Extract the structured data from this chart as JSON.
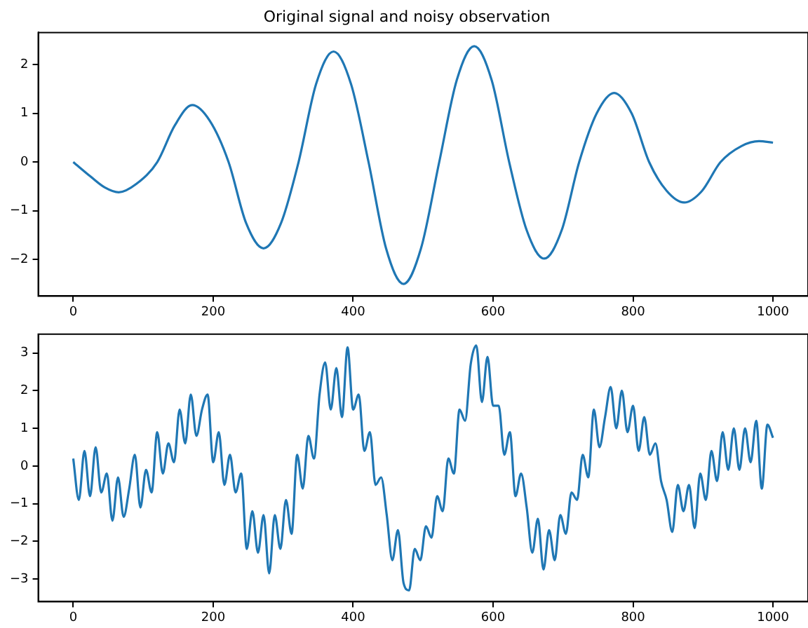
{
  "chart_data": [
    {
      "type": "line",
      "title": "Original signal and noisy observation",
      "xlim": [
        -50,
        1050
      ],
      "xticks": [
        0,
        200,
        400,
        600,
        800,
        1000
      ],
      "ylim": [
        -2.75,
        2.66
      ],
      "yticks": [
        -2,
        -1,
        0,
        1,
        2
      ],
      "grid": false,
      "legend": false,
      "marker": "none",
      "line_style": "solid",
      "series": [
        {
          "color": "#1f77b4",
          "x": [
            0,
            25,
            45,
            65,
            90,
            120,
            145,
            170,
            195,
            222,
            247,
            272,
            297,
            322,
            347,
            372,
            397,
            422,
            447,
            472,
            497,
            523,
            548,
            573,
            598,
            623,
            648,
            673,
            698,
            723,
            748,
            773,
            798,
            823,
            848,
            873,
            898,
            925,
            955,
            980,
            1000
          ],
          "values": [
            0,
            -0.3,
            -0.52,
            -0.62,
            -0.45,
            0,
            0.75,
            1.17,
            0.85,
            0,
            -1.25,
            -1.77,
            -1.25,
            0,
            1.6,
            2.27,
            1.6,
            0,
            -1.77,
            -2.5,
            -1.77,
            0,
            1.68,
            2.38,
            1.68,
            0,
            -1.4,
            -1.98,
            -1.4,
            0,
            1.0,
            1.42,
            1.0,
            0,
            -0.59,
            -0.83,
            -0.6,
            0,
            0.33,
            0.43,
            0.4
          ]
        }
      ]
    },
    {
      "type": "line",
      "xlim": [
        -50,
        1050
      ],
      "xticks": [
        0,
        200,
        400,
        600,
        800,
        1000
      ],
      "ylim": [
        -3.6,
        3.5
      ],
      "yticks": [
        -3,
        -2,
        -1,
        0,
        1,
        2,
        3
      ],
      "grid": false,
      "legend": false,
      "marker": "none",
      "line_style": "solid",
      "series": [
        {
          "color": "#1f77b4",
          "x": [
            0,
            8,
            16,
            24,
            32,
            40,
            48,
            56,
            64,
            72,
            80,
            88,
            96,
            104,
            112,
            120,
            128,
            136,
            144,
            152,
            160,
            168,
            176,
            184,
            192,
            200,
            208,
            216,
            224,
            232,
            240,
            248,
            256,
            264,
            272,
            280,
            288,
            296,
            304,
            312,
            320,
            328,
            336,
            344,
            352,
            360,
            368,
            376,
            384,
            392,
            400,
            408,
            416,
            424,
            432,
            440,
            448,
            456,
            464,
            472,
            480,
            488,
            496,
            504,
            512,
            520,
            528,
            536,
            544,
            552,
            560,
            568,
            576,
            584,
            592,
            600,
            608,
            616,
            624,
            632,
            640,
            648,
            656,
            664,
            672,
            680,
            688,
            696,
            704,
            712,
            720,
            728,
            736,
            744,
            752,
            760,
            768,
            776,
            784,
            792,
            800,
            808,
            816,
            824,
            832,
            840,
            848,
            856,
            864,
            872,
            880,
            888,
            896,
            904,
            912,
            920,
            928,
            936,
            944,
            952,
            960,
            968,
            976,
            984,
            992,
            1000
          ],
          "values": [
            0.2,
            -0.9,
            0.4,
            -0.8,
            0.5,
            -0.7,
            -0.2,
            -1.45,
            -0.3,
            -1.35,
            -0.6,
            0.3,
            -1.1,
            -0.1,
            -0.7,
            0.9,
            -0.2,
            0.6,
            0.1,
            1.5,
            0.6,
            1.9,
            0.8,
            1.5,
            1.9,
            0.1,
            0.9,
            -0.5,
            0.3,
            -0.7,
            -0.2,
            -2.2,
            -1.2,
            -2.3,
            -1.3,
            -2.85,
            -1.3,
            -2.2,
            -0.9,
            -1.8,
            0.3,
            -0.6,
            0.8,
            0.2,
            1.9,
            2.75,
            1.5,
            2.6,
            1.3,
            3.15,
            1.5,
            1.9,
            0.4,
            0.9,
            -0.5,
            -0.3,
            -1.3,
            -2.5,
            -1.7,
            -3.1,
            -3.3,
            -2.2,
            -2.5,
            -1.6,
            -1.9,
            -0.8,
            -1.2,
            0.2,
            -0.2,
            1.5,
            1.2,
            2.7,
            3.2,
            1.7,
            2.9,
            1.6,
            1.6,
            0.3,
            0.9,
            -0.8,
            -0.2,
            -1.1,
            -2.3,
            -1.4,
            -2.75,
            -1.7,
            -2.5,
            -1.3,
            -1.8,
            -0.7,
            -0.9,
            0.3,
            -0.3,
            1.5,
            0.5,
            1.3,
            2.1,
            1.0,
            2.0,
            0.9,
            1.6,
            0.4,
            1.3,
            0.3,
            0.6,
            -0.4,
            -0.9,
            -1.75,
            -0.5,
            -1.2,
            -0.5,
            -1.65,
            -0.2,
            -0.9,
            0.4,
            -0.4,
            0.9,
            -0.1,
            1.0,
            -0.1,
            1.0,
            0.1,
            1.2,
            -0.6,
            1.1,
            0.75
          ]
        }
      ]
    }
  ]
}
